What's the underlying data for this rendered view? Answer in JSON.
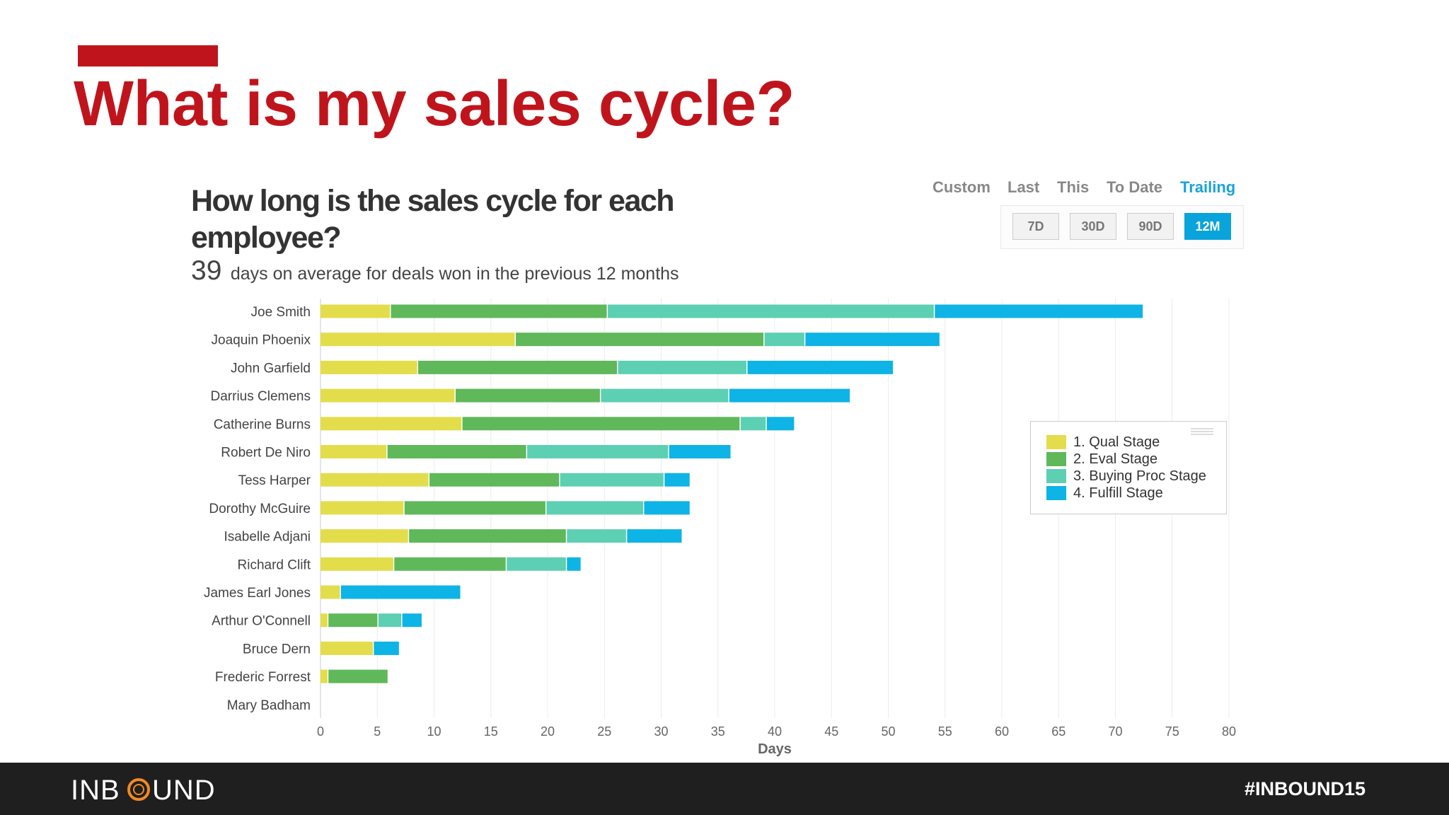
{
  "slide": {
    "title": "What is my sales cycle?"
  },
  "report": {
    "title": "How long is the sales cycle for each employee?",
    "average_value": "39",
    "average_text": "days on average for deals won in the previous 12 months",
    "period_tabs": [
      "Custom",
      "Last",
      "This",
      "To Date",
      "Trailing"
    ],
    "active_period_tab": "Trailing",
    "range_buttons": [
      "7D",
      "30D",
      "90D",
      "12M"
    ],
    "active_range": "12M"
  },
  "chart_data": {
    "type": "bar",
    "orientation": "horizontal",
    "stacked": true,
    "categories": [
      "Joe Smith",
      "Joaquin Phoenix",
      "John Garfield",
      "Darrius Clemens",
      "Catherine Burns",
      "Robert De Niro",
      "Tess Harper",
      "Dorothy McGuire",
      "Isabelle Adjani",
      "Richard Clift",
      "James Earl Jones",
      "Arthur O'Connell",
      "Bruce Dern",
      "Frederic Forrest",
      "Mary Badham"
    ],
    "series": [
      {
        "name": "1. Qual Stage",
        "color": "#e3dd4c",
        "values": [
          6.2,
          17.2,
          8.6,
          11.9,
          12.5,
          5.9,
          9.6,
          7.4,
          7.8,
          6.5,
          1.8,
          0.7,
          4.7,
          0.7,
          0
        ]
      },
      {
        "name": "2. Eval Stage",
        "color": "#5fb85a",
        "values": [
          19.1,
          21.9,
          17.6,
          12.8,
          24.5,
          12.3,
          11.5,
          12.5,
          13.9,
          9.9,
          0,
          4.4,
          0,
          5.3,
          0
        ]
      },
      {
        "name": "3. Buying Proc Stage",
        "color": "#5dcfb3",
        "values": [
          28.8,
          3.6,
          11.4,
          11.3,
          2.3,
          12.5,
          9.2,
          8.6,
          5.3,
          5.3,
          0,
          2.1,
          0,
          0,
          0
        ]
      },
      {
        "name": "4. Fulfill Stage",
        "color": "#0db4e5",
        "values": [
          18.4,
          11.9,
          12.9,
          10.7,
          2.5,
          5.5,
          2.3,
          4.1,
          4.9,
          1.3,
          10.6,
          1.8,
          2.3,
          0,
          0
        ]
      }
    ],
    "xlabel": "Days",
    "xlim": [
      0,
      80
    ],
    "xticks": [
      0,
      5,
      10,
      15,
      20,
      25,
      30,
      35,
      40,
      45,
      50,
      55,
      60,
      65,
      70,
      75,
      80
    ],
    "grid": true,
    "legend_position": "right"
  },
  "footer": {
    "logo": "INBOUND",
    "hashtag": "#INBOUND15"
  }
}
